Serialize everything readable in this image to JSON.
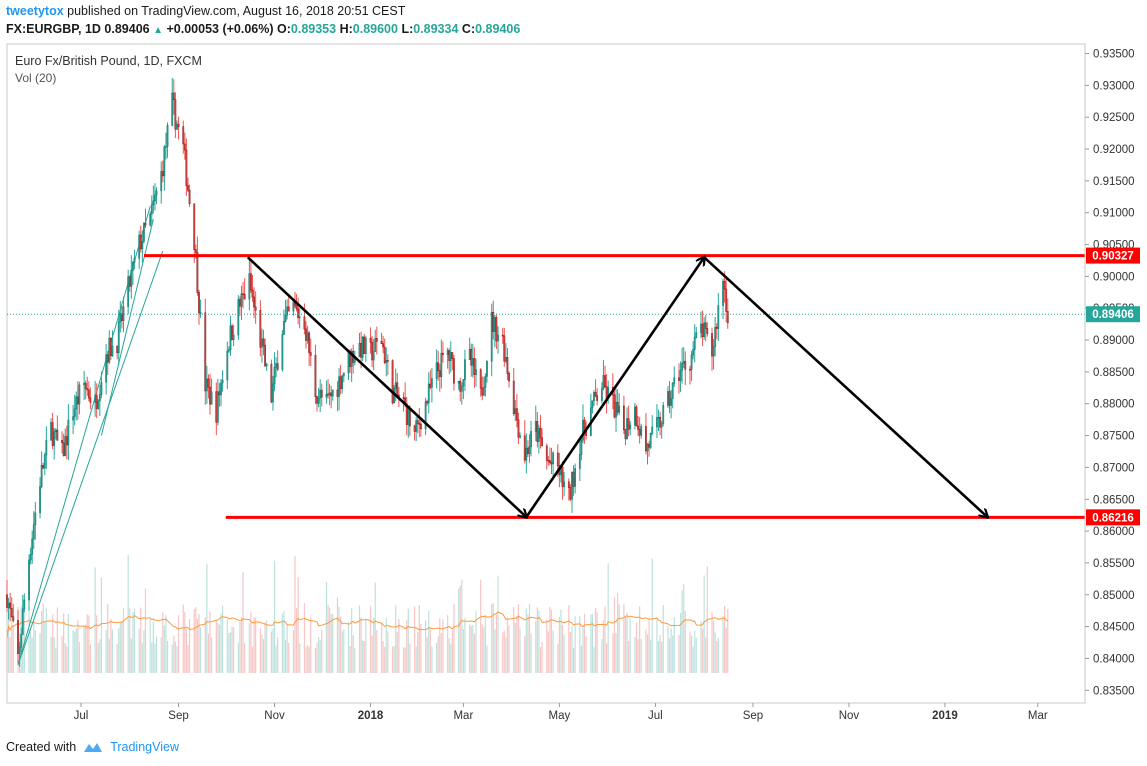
{
  "header": {
    "user": "tweetytox",
    "published_text": "published on TradingView.com, August 16, 2018 20:51 CEST",
    "symbol": "FX:EURGBP, 1D",
    "last": "0.89406",
    "change": "+0.00053 (+0.06%)",
    "change_arrow": "▲",
    "o_label": "O:",
    "o_value": "0.89353",
    "h_label": "H:",
    "h_value": "0.89600",
    "l_label": "L:",
    "l_value": "0.89334",
    "c_label": "C:",
    "c_value": "0.89406"
  },
  "footer": {
    "created_with": "Created with",
    "brand": "TradingView"
  },
  "colors": {
    "up": "#26a69a",
    "down": "#ef5350",
    "resistance": "#ff0000",
    "arrows": "#000000",
    "vol_ma": "#ff7f0e",
    "brand": "#2196f3"
  },
  "chart_data": {
    "type": "candlestick",
    "title": "Euro Fx/British Pound, 1D, FXCM",
    "subtitle": "Vol (20)",
    "ylim": [
      0.833,
      0.9365
    ],
    "yticks": [
      "0.93500",
      "0.93000",
      "0.92500",
      "0.92000",
      "0.91500",
      "0.91000",
      "0.90500",
      "0.90000",
      "0.89500",
      "0.89000",
      "0.88500",
      "0.88000",
      "0.87500",
      "0.87000",
      "0.86500",
      "0.86000",
      "0.85500",
      "0.85000",
      "0.84500",
      "0.84000",
      "0.83500"
    ],
    "xticks": [
      "Jul",
      "Sep",
      "Nov",
      "2018",
      "Mar",
      "May",
      "Jul",
      "Sep",
      "Nov",
      "2019",
      "Mar"
    ],
    "xrange": [
      "2017-05-15",
      "2019-03-31"
    ],
    "current_price": {
      "value": 0.89406,
      "label": "0.89406"
    },
    "levels": [
      {
        "name": "resistance",
        "value": 0.90327,
        "label": "0.90327",
        "from": "2017-08-10"
      },
      {
        "name": "support",
        "value": 0.86216,
        "label": "0.86216",
        "from": "2017-10-01"
      }
    ],
    "arrows": [
      {
        "from": [
          "2017-10-15",
          0.903
        ],
        "to": [
          "2018-04-10",
          0.8622
        ]
      },
      {
        "from": [
          "2018-04-10",
          0.8622
        ],
        "to": [
          "2018-08-01",
          0.903
        ]
      },
      {
        "from": [
          "2018-08-01",
          0.903
        ],
        "to": [
          "2019-01-28",
          0.8622
        ]
      }
    ],
    "trendlines": [
      {
        "from": [
          "2017-05-22",
          0.839
        ],
        "to": [
          "2017-08-14",
          0.911
        ]
      },
      {
        "from": [
          "2017-05-22",
          0.839
        ],
        "to": [
          "2017-08-22",
          0.904
        ]
      },
      {
        "from": [
          "2017-07-14",
          0.875
        ],
        "to": [
          "2017-08-16",
          0.909
        ]
      }
    ],
    "price_path": [
      [
        "2017-05-15",
        0.85
      ],
      [
        "2017-05-22",
        0.84
      ],
      [
        "2017-05-29",
        0.856
      ],
      [
        "2017-06-05",
        0.868
      ],
      [
        "2017-06-12",
        0.876
      ],
      [
        "2017-06-19",
        0.872
      ],
      [
        "2017-06-26",
        0.879
      ],
      [
        "2017-07-03",
        0.883
      ],
      [
        "2017-07-10",
        0.88
      ],
      [
        "2017-07-17",
        0.888
      ],
      [
        "2017-07-24",
        0.89
      ],
      [
        "2017-07-31",
        0.898
      ],
      [
        "2017-08-07",
        0.905
      ],
      [
        "2017-08-14",
        0.909
      ],
      [
        "2017-08-21",
        0.916
      ],
      [
        "2017-08-28",
        0.927
      ],
      [
        "2017-09-04",
        0.92
      ],
      [
        "2017-09-11",
        0.906
      ],
      [
        "2017-09-18",
        0.883
      ],
      [
        "2017-09-25",
        0.879
      ],
      [
        "2017-10-02",
        0.889
      ],
      [
        "2017-10-09",
        0.895
      ],
      [
        "2017-10-16",
        0.899
      ],
      [
        "2017-10-23",
        0.89
      ],
      [
        "2017-10-30",
        0.881
      ],
      [
        "2017-11-06",
        0.892
      ],
      [
        "2017-11-13",
        0.895
      ],
      [
        "2017-11-20",
        0.893
      ],
      [
        "2017-11-27",
        0.882
      ],
      [
        "2017-12-04",
        0.88
      ],
      [
        "2017-12-11",
        0.883
      ],
      [
        "2017-12-18",
        0.887
      ],
      [
        "2017-12-25",
        0.889
      ],
      [
        "2018-01-01",
        0.888
      ],
      [
        "2018-01-08",
        0.89
      ],
      [
        "2018-01-15",
        0.882
      ],
      [
        "2018-01-22",
        0.88
      ],
      [
        "2018-01-29",
        0.875
      ],
      [
        "2018-02-05",
        0.88
      ],
      [
        "2018-02-12",
        0.885
      ],
      [
        "2018-02-19",
        0.888
      ],
      [
        "2018-02-26",
        0.883
      ],
      [
        "2018-03-05",
        0.887
      ],
      [
        "2018-03-12",
        0.881
      ],
      [
        "2018-03-19",
        0.893
      ],
      [
        "2018-03-26",
        0.89
      ],
      [
        "2018-04-02",
        0.88
      ],
      [
        "2018-04-09",
        0.872
      ],
      [
        "2018-04-16",
        0.876
      ],
      [
        "2018-04-23",
        0.871
      ],
      [
        "2018-04-30",
        0.87
      ],
      [
        "2018-05-07",
        0.865
      ],
      [
        "2018-05-14",
        0.874
      ],
      [
        "2018-05-21",
        0.879
      ],
      [
        "2018-05-28",
        0.883
      ],
      [
        "2018-06-04",
        0.88
      ],
      [
        "2018-06-11",
        0.876
      ],
      [
        "2018-06-18",
        0.879
      ],
      [
        "2018-06-25",
        0.873
      ],
      [
        "2018-07-02",
        0.876
      ],
      [
        "2018-07-09",
        0.88
      ],
      [
        "2018-07-16",
        0.885
      ],
      [
        "2018-07-23",
        0.887
      ],
      [
        "2018-07-30",
        0.892
      ],
      [
        "2018-08-06",
        0.888
      ],
      [
        "2018-08-13",
        0.9
      ],
      [
        "2018-08-16",
        0.8941
      ]
    ]
  }
}
